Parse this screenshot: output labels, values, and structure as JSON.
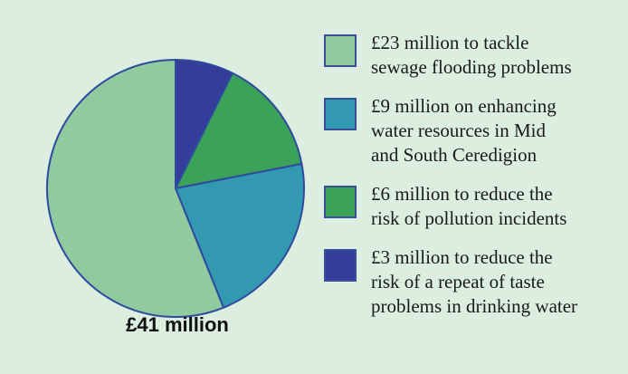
{
  "chart_data": {
    "type": "pie",
    "total_label": "£41 million",
    "slice_border_color": "#2f4a9e",
    "background_color": "#dbeedf",
    "slices": [
      {
        "label": "£23 million to tackle sewage flooding problems",
        "legend_text": "£23 million to tackle\nsewage flooding problems",
        "value": 23,
        "color": "#8fcb9e"
      },
      {
        "label": "£9 million on enhancing water resources in Mid and South Ceredigion",
        "legend_text": "£9 million on enhancing\nwater resources in Mid\nand South Ceredigion",
        "value": 9,
        "color": "#3399b0"
      },
      {
        "label": "£6 million to reduce the risk of pollution incidents",
        "legend_text": "£6 million to reduce the\nrisk of pollution incidents",
        "value": 6,
        "color": "#3aa259"
      },
      {
        "label": "£3 million to reduce the risk of a repeat of taste problems in drinking water",
        "legend_text": "£3 million to reduce the\nrisk of a repeat of taste\nproblems in drinking water",
        "value": 3,
        "color": "#343e9a"
      }
    ]
  }
}
